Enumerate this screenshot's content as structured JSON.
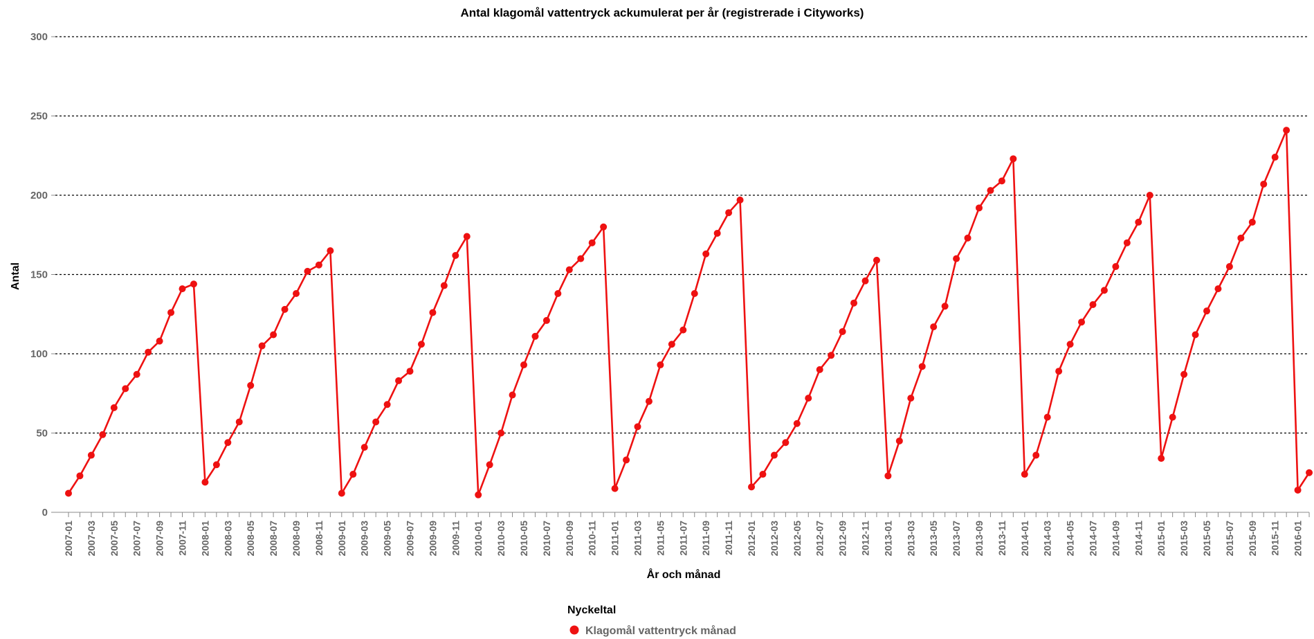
{
  "chart_data": {
    "type": "line",
    "title": "Antal klagomål vattentryck ackumulerat per år (registrerade i Cityworks)",
    "xlabel": "År och månad",
    "ylabel": "Antal",
    "ylim": [
      0,
      300
    ],
    "yticks": [
      0,
      50,
      100,
      150,
      200,
      250,
      300
    ],
    "grid": true,
    "legend_position": "bottom",
    "legend_title": "Nyckeltal",
    "series_color": "#ee1111",
    "x": [
      "2007-01",
      "2007-02",
      "2007-03",
      "2007-04",
      "2007-05",
      "2007-06",
      "2007-07",
      "2007-08",
      "2007-09",
      "2007-10",
      "2007-11",
      "2007-12",
      "2008-01",
      "2008-02",
      "2008-03",
      "2008-04",
      "2008-05",
      "2008-06",
      "2008-07",
      "2008-08",
      "2008-09",
      "2008-10",
      "2008-11",
      "2008-12",
      "2009-01",
      "2009-02",
      "2009-03",
      "2009-04",
      "2009-05",
      "2009-06",
      "2009-07",
      "2009-08",
      "2009-09",
      "2009-10",
      "2009-11",
      "2009-12",
      "2010-01",
      "2010-02",
      "2010-03",
      "2010-04",
      "2010-05",
      "2010-06",
      "2010-07",
      "2010-08",
      "2010-09",
      "2010-10",
      "2010-11",
      "2010-12",
      "2011-01",
      "2011-02",
      "2011-03",
      "2011-04",
      "2011-05",
      "2011-06",
      "2011-07",
      "2011-08",
      "2011-09",
      "2011-10",
      "2011-11",
      "2011-12",
      "2012-01",
      "2012-02",
      "2012-03",
      "2012-04",
      "2012-05",
      "2012-06",
      "2012-07",
      "2012-08",
      "2012-09",
      "2012-10",
      "2012-11",
      "2012-12",
      "2013-01",
      "2013-02",
      "2013-03",
      "2013-04",
      "2013-05",
      "2013-06",
      "2013-07",
      "2013-08",
      "2013-09",
      "2013-10",
      "2013-11",
      "2013-12",
      "2014-01",
      "2014-02",
      "2014-03",
      "2014-04",
      "2014-05",
      "2014-06",
      "2014-07",
      "2014-08",
      "2014-09",
      "2014-10",
      "2014-11",
      "2014-12",
      "2015-01",
      "2015-02",
      "2015-03",
      "2015-04",
      "2015-05",
      "2015-06",
      "2015-07",
      "2015-08",
      "2015-09",
      "2015-10",
      "2015-11",
      "2015-12",
      "2016-01",
      "2016-02"
    ],
    "series": [
      {
        "name": "Klagomål vattentryck månad",
        "values": [
          12,
          23,
          36,
          49,
          66,
          78,
          87,
          101,
          108,
          126,
          141,
          144,
          19,
          30,
          44,
          57,
          80,
          105,
          112,
          128,
          138,
          152,
          156,
          165,
          12,
          24,
          41,
          57,
          68,
          83,
          89,
          106,
          126,
          143,
          162,
          174,
          11,
          30,
          50,
          74,
          93,
          111,
          121,
          138,
          153,
          160,
          170,
          180,
          15,
          33,
          54,
          70,
          93,
          106,
          115,
          138,
          163,
          176,
          189,
          197,
          16,
          24,
          36,
          44,
          56,
          72,
          90,
          99,
          114,
          132,
          146,
          159,
          23,
          45,
          72,
          92,
          117,
          130,
          160,
          173,
          192,
          203,
          209,
          223,
          24,
          36,
          60,
          89,
          106,
          120,
          131,
          140,
          155,
          170,
          183,
          200,
          34,
          60,
          87,
          112,
          127,
          141,
          155,
          173,
          183,
          207,
          224,
          241,
          14,
          25
        ]
      }
    ]
  }
}
